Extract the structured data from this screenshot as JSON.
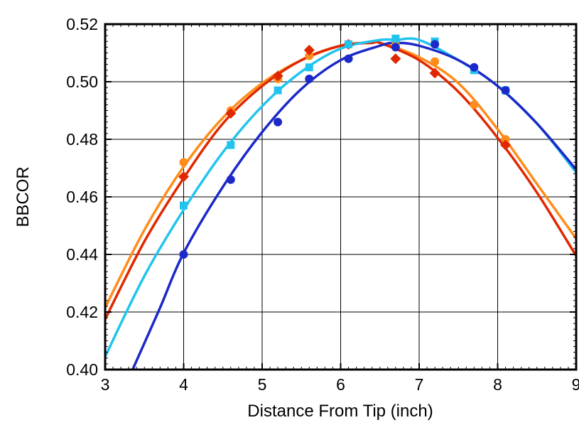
{
  "chart_data": {
    "type": "scatter",
    "xlabel": "Distance From Tip (inch)",
    "ylabel": "BBCOR",
    "xlim": [
      3,
      9
    ],
    "ylim": [
      0.4,
      0.52
    ],
    "grid": true,
    "x_ticks": [
      "3",
      "4",
      "5",
      "6",
      "7",
      "8",
      "9"
    ],
    "y_ticks": [
      "0.40",
      "0.42",
      "0.44",
      "0.46",
      "0.48",
      "0.50",
      "0.52"
    ],
    "series": [
      {
        "color": "#ff8c1a",
        "marker": "circle",
        "points": [
          [
            4.0,
            0.472
          ],
          [
            4.6,
            0.49
          ],
          [
            5.2,
            0.501
          ],
          [
            5.6,
            0.509
          ],
          [
            6.1,
            0.513
          ],
          [
            6.7,
            0.514
          ],
          [
            7.2,
            0.507
          ],
          [
            7.7,
            0.492
          ],
          [
            8.1,
            0.48
          ]
        ],
        "fit": [
          [
            3,
            0.4215
          ],
          [
            3.5,
            0.4485
          ],
          [
            4,
            0.4705
          ],
          [
            4.5,
            0.4875
          ],
          [
            5,
            0.4995
          ],
          [
            5.5,
            0.5075
          ],
          [
            6,
            0.5125
          ],
          [
            6.3,
            0.5135
          ],
          [
            6.5,
            0.5135
          ],
          [
            7,
            0.5085
          ],
          [
            7.5,
            0.4995
          ],
          [
            8,
            0.4835
          ],
          [
            8.5,
            0.4645
          ],
          [
            9,
            0.4455
          ]
        ]
      },
      {
        "color": "#e02800",
        "marker": "diamond",
        "points": [
          [
            4.0,
            0.467
          ],
          [
            4.6,
            0.489
          ],
          [
            5.2,
            0.502
          ],
          [
            5.6,
            0.511
          ],
          [
            6.1,
            0.513
          ],
          [
            6.7,
            0.508
          ],
          [
            7.2,
            0.503
          ],
          [
            8.1,
            0.478
          ]
        ],
        "fit": [
          [
            3,
            0.4175
          ],
          [
            3.5,
            0.4445
          ],
          [
            4,
            0.4665
          ],
          [
            4.5,
            0.4855
          ],
          [
            5,
            0.4985
          ],
          [
            5.5,
            0.5075
          ],
          [
            6,
            0.5125
          ],
          [
            6.4,
            0.5135
          ],
          [
            6.5,
            0.5135
          ],
          [
            7,
            0.5075
          ],
          [
            7.5,
            0.4965
          ],
          [
            8,
            0.4805
          ],
          [
            8.5,
            0.4615
          ],
          [
            9,
            0.4395
          ]
        ]
      },
      {
        "color": "#21c4ee",
        "marker": "square",
        "points": [
          [
            4.0,
            0.457
          ],
          [
            4.6,
            0.478
          ],
          [
            5.2,
            0.497
          ],
          [
            5.6,
            0.505
          ],
          [
            6.1,
            0.513
          ],
          [
            6.7,
            0.515
          ],
          [
            7.2,
            0.514
          ],
          [
            7.7,
            0.504
          ],
          [
            8.1,
            0.497
          ]
        ],
        "fit": [
          [
            3,
            0.4045
          ],
          [
            3.5,
            0.4325
          ],
          [
            4,
            0.4555
          ],
          [
            4.5,
            0.4755
          ],
          [
            5,
            0.4915
          ],
          [
            5.5,
            0.5035
          ],
          [
            6,
            0.5115
          ],
          [
            6.5,
            0.5145
          ],
          [
            6.7,
            0.5145
          ],
          [
            7,
            0.5145
          ],
          [
            7.5,
            0.5075
          ],
          [
            8,
            0.4985
          ],
          [
            8.5,
            0.4855
          ],
          [
            9,
            0.4685
          ]
        ]
      },
      {
        "color": "#1c28c8",
        "marker": "circle",
        "points": [
          [
            4.0,
            0.44
          ],
          [
            4.6,
            0.466
          ],
          [
            5.2,
            0.486
          ],
          [
            5.6,
            0.501
          ],
          [
            6.1,
            0.508
          ],
          [
            6.7,
            0.512
          ],
          [
            7.2,
            0.513
          ],
          [
            7.7,
            0.505
          ],
          [
            8.1,
            0.497
          ]
        ],
        "fit": [
          [
            3.35,
            0.4
          ],
          [
            3.7,
            0.4215
          ],
          [
            4,
            0.4405
          ],
          [
            4.5,
            0.4635
          ],
          [
            5,
            0.4825
          ],
          [
            5.5,
            0.4975
          ],
          [
            6,
            0.5075
          ],
          [
            6.5,
            0.5125
          ],
          [
            6.7,
            0.5135
          ],
          [
            7,
            0.5125
          ],
          [
            7.5,
            0.5075
          ],
          [
            8,
            0.4985
          ],
          [
            8.5,
            0.4855
          ],
          [
            9,
            0.4695
          ]
        ]
      }
    ]
  }
}
